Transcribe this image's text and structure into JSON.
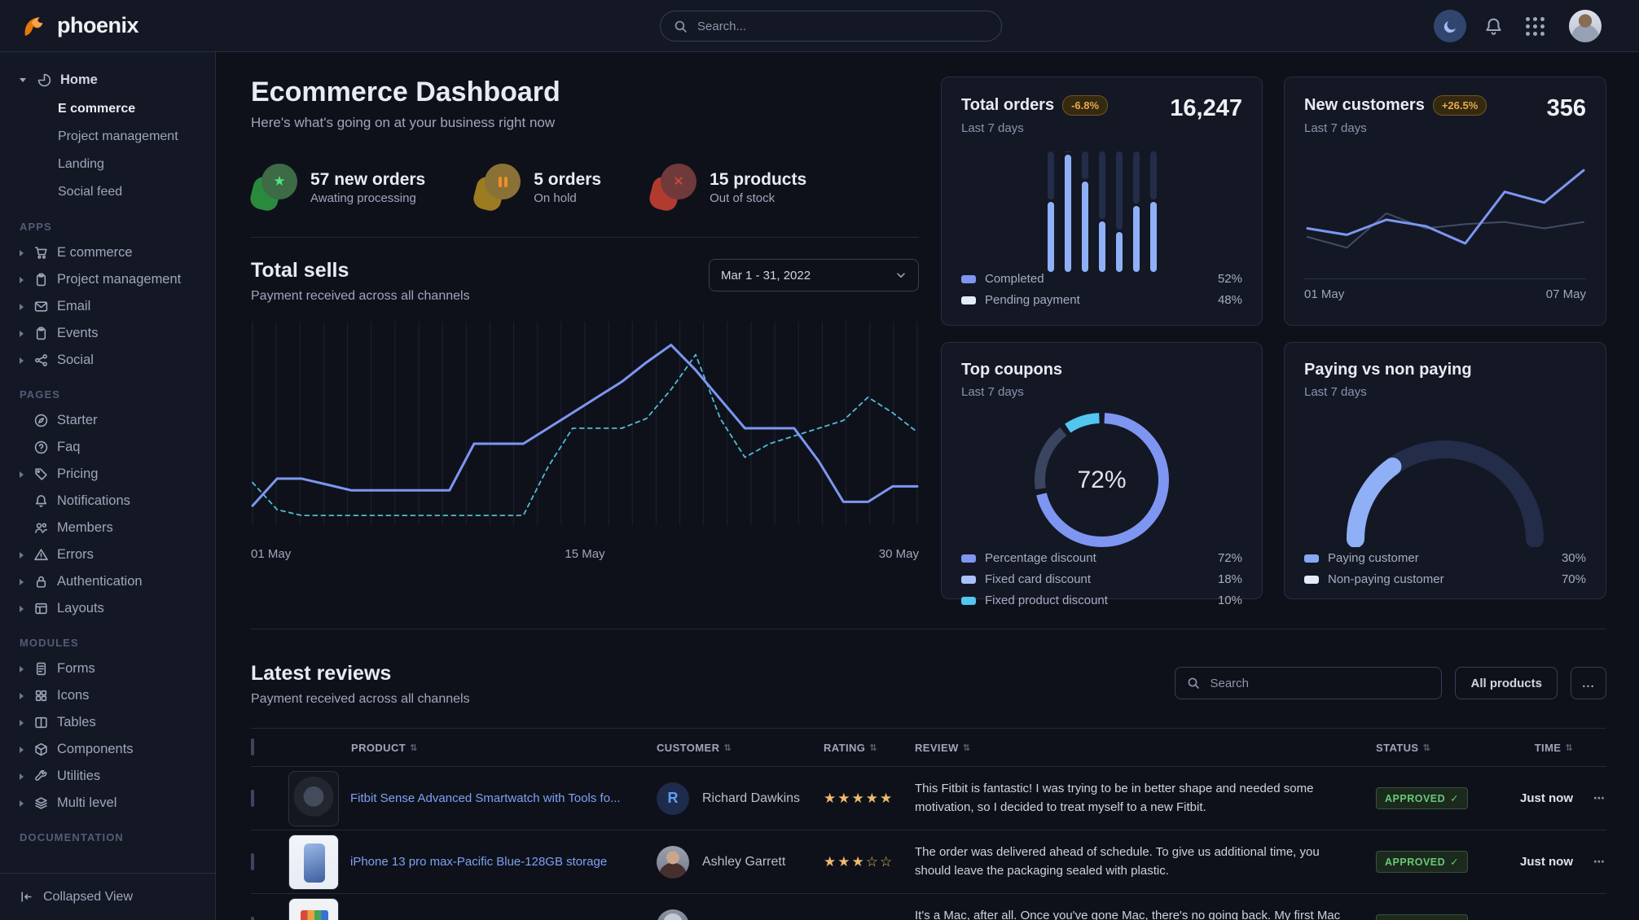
{
  "navbar": {
    "brand": "phoenix",
    "search_placeholder": "Search..."
  },
  "sidebar": {
    "home": {
      "label": "Home",
      "children": [
        "E commerce",
        "Project management",
        "Landing",
        "Social feed"
      ],
      "active_child": "E commerce"
    },
    "sections": [
      {
        "label": "APPS",
        "items": [
          {
            "label": "E commerce",
            "icon": "cart-icon",
            "caret": true
          },
          {
            "label": "Project management",
            "icon": "clipboard-icon",
            "caret": true
          },
          {
            "label": "Email",
            "icon": "envelope-icon",
            "caret": true
          },
          {
            "label": "Events",
            "icon": "clipboard-icon",
            "caret": true
          },
          {
            "label": "Social",
            "icon": "share-icon",
            "caret": true
          }
        ]
      },
      {
        "label": "PAGES",
        "items": [
          {
            "label": "Starter",
            "icon": "compass-icon",
            "caret": false
          },
          {
            "label": "Faq",
            "icon": "question-icon",
            "caret": false
          },
          {
            "label": "Pricing",
            "icon": "tag-icon",
            "caret": true
          },
          {
            "label": "Notifications",
            "icon": "bell-icon",
            "caret": false
          },
          {
            "label": "Members",
            "icon": "users-icon",
            "caret": false
          },
          {
            "label": "Errors",
            "icon": "warning-icon",
            "caret": true
          },
          {
            "label": "Authentication",
            "icon": "lock-icon",
            "caret": true
          },
          {
            "label": "Layouts",
            "icon": "layout-icon",
            "caret": true
          }
        ]
      },
      {
        "label": "MODULES",
        "items": [
          {
            "label": "Forms",
            "icon": "file-icon",
            "caret": true
          },
          {
            "label": "Icons",
            "icon": "grid-icon",
            "caret": true
          },
          {
            "label": "Tables",
            "icon": "columns-icon",
            "caret": true
          },
          {
            "label": "Components",
            "icon": "box-icon",
            "caret": true
          },
          {
            "label": "Utilities",
            "icon": "wrench-icon",
            "caret": true
          },
          {
            "label": "Multi level",
            "icon": "layers-icon",
            "caret": true
          }
        ]
      },
      {
        "label": "DOCUMENTATION",
        "items": []
      }
    ],
    "footer_label": "Collapsed View"
  },
  "header": {
    "title": "Ecommerce Dashboard",
    "subtitle": "Here's what's going on at your business right now"
  },
  "stats": [
    {
      "value": "57 new orders",
      "sub": "Awating processing",
      "glyph": "star",
      "blob": "#2a8a3c",
      "circle": "#3c6b46",
      "glyph_color": "#53e27d"
    },
    {
      "value": "5 orders",
      "sub": "On hold",
      "glyph": "pause",
      "blob": "#9b7c22",
      "circle": "#8a7136",
      "glyph_color": "#f09029"
    },
    {
      "value": "15 products",
      "sub": "Out of stock",
      "glyph": "x",
      "blob": "#b23b30",
      "circle": "#703a3a",
      "glyph_color": "#e2483d"
    }
  ],
  "total_sells": {
    "title": "Total sells",
    "subtitle": "Payment received across all channels",
    "date_range": "Mar 1 - 31, 2022",
    "x_labels": [
      "01 May",
      "15 May",
      "30 May"
    ],
    "chart_data": {
      "type": "line",
      "series": [
        {
          "name": "sells-solid",
          "color": "#7c97f2",
          "dashed": false,
          "values": [
            10,
            24,
            24,
            21,
            18,
            18,
            18,
            18,
            18,
            42,
            42,
            42,
            50,
            58,
            66,
            74,
            84,
            93,
            80,
            65,
            50,
            50,
            50,
            33,
            12,
            12,
            20,
            20
          ]
        },
        {
          "name": "sells-dashed",
          "color": "#4fbdd8",
          "dashed": true,
          "values": [
            22,
            8,
            5,
            5,
            5,
            5,
            5,
            5,
            5,
            5,
            5,
            5,
            30,
            50,
            50,
            50,
            55,
            70,
            88,
            55,
            35,
            42,
            46,
            50,
            54,
            66,
            58,
            48
          ]
        }
      ]
    }
  },
  "total_orders": {
    "title": "Total orders",
    "badge": "-6.8%",
    "period": "Last 7 days",
    "value": "16,247",
    "chart_data": {
      "type": "bar",
      "completed_pct": [
        58,
        97,
        75,
        42,
        33,
        55,
        58
      ]
    },
    "legend": [
      {
        "label": "Completed",
        "value": "52%",
        "color": "#7e96f2"
      },
      {
        "label": "Pending payment",
        "value": "48%",
        "color": "#e4ecfb"
      }
    ]
  },
  "new_customers": {
    "title": "New customers",
    "badge": "+26.5%",
    "period": "Last 7 days",
    "value": "356",
    "x_labels": [
      "01 May",
      "07 May"
    ],
    "chart_data": {
      "type": "line",
      "series": [
        {
          "name": "customers",
          "color": "#7c97f2",
          "values": [
            36,
            30,
            44,
            38,
            22,
            70,
            60,
            90
          ]
        },
        {
          "name": "previous",
          "color": "#414c66",
          "values": [
            28,
            18,
            50,
            36,
            40,
            42,
            36,
            42
          ]
        }
      ]
    }
  },
  "top_coupons": {
    "title": "Top coupons",
    "period": "Last 7 days",
    "center_label": "72%",
    "chart_data": {
      "type": "pie",
      "arc_colors": [
        "#7e96f2",
        "#3a4560",
        "#52c6f0"
      ],
      "values": [
        72,
        18,
        10
      ]
    },
    "legend": [
      {
        "label": "Percentage discount",
        "value": "72%",
        "color": "#7e96f2"
      },
      {
        "label": "Fixed card discount",
        "value": "18%",
        "color": "#a9c2f7"
      },
      {
        "label": "Fixed product discount",
        "value": "10%",
        "color": "#52c6f0"
      }
    ]
  },
  "paying": {
    "title": "Paying vs non paying",
    "period": "Last 7 days",
    "chart_data": {
      "type": "gauge",
      "paying_pct": 30,
      "paying_color": "#8fb0f7",
      "rest_color": "#232d49"
    },
    "legend": [
      {
        "label": "Paying customer",
        "value": "30%",
        "color": "#85a9f5"
      },
      {
        "label": "Non-paying customer",
        "value": "70%",
        "color": "#e4ecfb"
      }
    ]
  },
  "reviews": {
    "title": "Latest reviews",
    "subtitle": "Payment received across all channels",
    "search_placeholder": "Search",
    "filter_button": "All products",
    "more_button": "...",
    "columns": [
      "PRODUCT",
      "CUSTOMER",
      "RATING",
      "REVIEW",
      "STATUS",
      "TIME"
    ],
    "rows": [
      {
        "product": "Fitbit Sense Advanced Smartwatch with Tools fo...",
        "thumb": "watch",
        "customer": "Richard Dawkins",
        "avatar": "initial",
        "avatar_initial": "R",
        "rating": 5,
        "review": "This Fitbit is fantastic! I was trying to be in better shape and needed some motivation, so I decided to treat myself to a new Fitbit.",
        "status": "APPROVED",
        "time": "Just now",
        "more": "..."
      },
      {
        "product": "iPhone 13 pro max-Pacific Blue-128GB storage",
        "thumb": "iphone",
        "customer": "Ashley Garrett",
        "avatar": "photo1",
        "avatar_initial": "",
        "rating": 3,
        "review": "The order was delivered ahead of schedule. To give us additional time, you should leave the packaging sealed with plastic.",
        "status": "APPROVED",
        "time": "Just now",
        "more": "..."
      },
      {
        "product": "",
        "thumb": "macbook",
        "customer": "",
        "avatar": "photo2",
        "avatar_initial": "",
        "rating": 0,
        "review": "It's a Mac, after all. Once you've gone Mac, there's no going back. My first Mac lasted",
        "status": "APPROVED",
        "time": "",
        "more": ""
      }
    ]
  }
}
